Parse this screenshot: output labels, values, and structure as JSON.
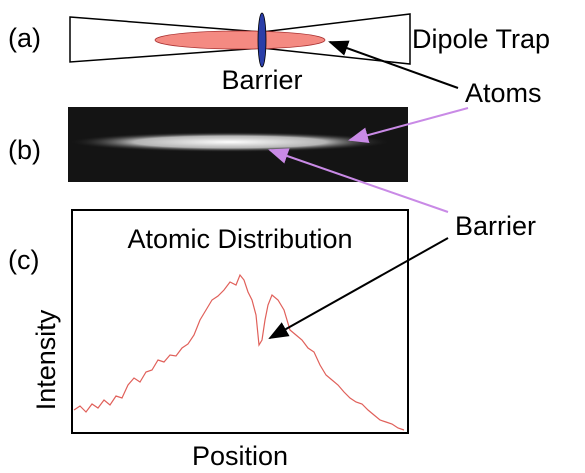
{
  "panel_a": {
    "label": "(a)",
    "trap_label": "Dipole Trap",
    "barrier_label": "Barrier"
  },
  "atoms_label": "Atoms",
  "panel_b": {
    "label": "(b)",
    "barrier_label": "Barrier"
  },
  "panel_c": {
    "label": "(c)",
    "title": "Atomic Distribution",
    "y_label": "Intensity",
    "x_label": "Position"
  }
}
